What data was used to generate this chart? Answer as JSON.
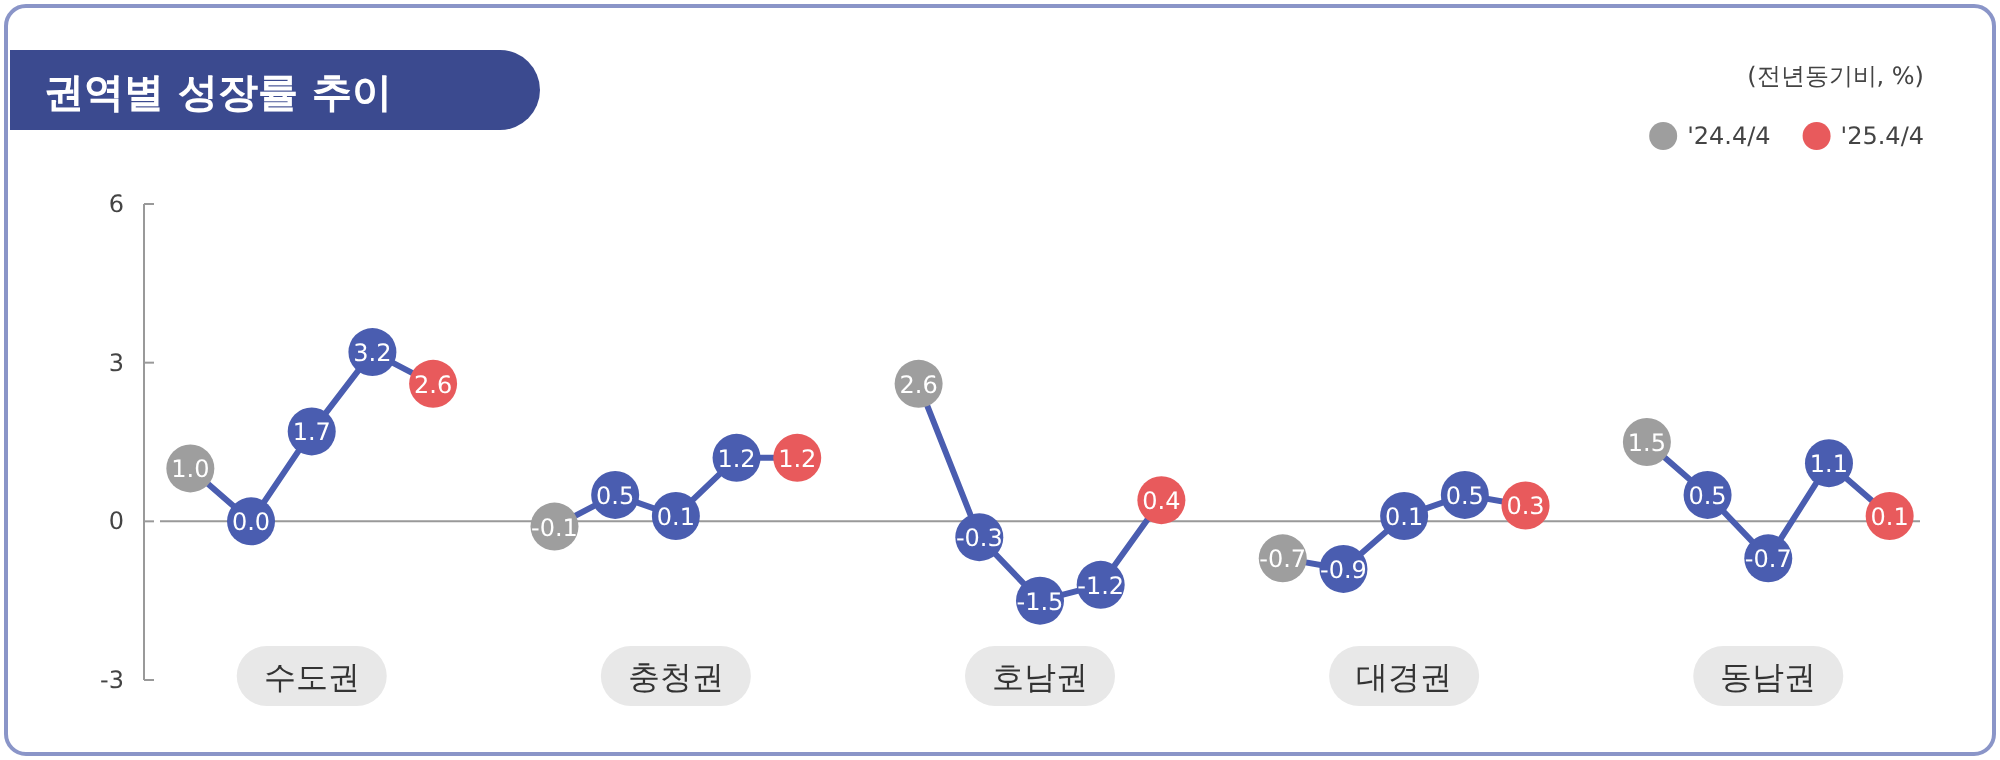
{
  "chart_data": {
    "type": "line",
    "title": "권역별 성장률 추이",
    "subtitle": "(전년동기비, %)",
    "annotations": [
      "수도권",
      "충청권",
      "호남권",
      "대경권",
      "동남권"
    ],
    "categories": [
      null,
      null,
      null,
      null,
      null,
      null,
      null,
      null,
      null,
      null,
      null,
      null,
      null,
      null,
      null,
      null,
      null,
      null,
      null,
      null,
      null,
      null,
      null,
      null,
      null,
      null,
      null,
      null,
      null
    ],
    "ylim": [
      -3,
      6
    ],
    "yticks": [
      -3,
      0,
      3,
      6
    ],
    "legend": "top right",
    "series": [
      {
        "color": "#4a5db0",
        "marker": "none",
        "values": [
          1.0,
          0.0,
          1.7,
          3.2,
          2.6,
          null,
          -0.1,
          0.5,
          0.1,
          1.2,
          1.2,
          null,
          2.6,
          -0.3,
          -1.5,
          -1.2,
          0.4,
          null,
          -0.7,
          -0.9,
          0.1,
          0.5,
          0.3,
          null,
          1.5,
          0.5,
          -0.7,
          1.1,
          0.1
        ]
      },
      {
        "type": "scatter",
        "marker": "circle",
        "color": "#4a5db0",
        "values": [
          null,
          0.0,
          1.7,
          3.2,
          null,
          null,
          null,
          0.5,
          0.1,
          1.2,
          null,
          null,
          null,
          -0.3,
          -1.5,
          -1.2,
          null,
          null,
          null,
          -0.9,
          0.1,
          0.5,
          null,
          null,
          null,
          0.5,
          -0.7,
          1.1,
          null
        ],
        "value_labels": [
          null,
          "0.0",
          "1.7",
          "3.2",
          null,
          null,
          null,
          "0.5",
          "0.1",
          "1.2",
          null,
          null,
          null,
          "-0.3",
          "-1.5",
          "-1.2",
          null,
          null,
          null,
          "-0.9",
          "0.1",
          "0.5",
          null,
          null,
          null,
          "0.5",
          "-0.7",
          "1.1",
          null
        ]
      },
      {
        "type": "scatter",
        "marker": "circle",
        "name": "'24.4/4",
        "color": "#9e9e9e",
        "values": [
          1.0,
          null,
          null,
          null,
          null,
          null,
          -0.1,
          null,
          null,
          null,
          null,
          null,
          2.6,
          null,
          null,
          null,
          null,
          null,
          -0.7,
          null,
          null,
          null,
          null,
          null,
          1.5,
          null,
          null,
          null,
          null
        ],
        "value_labels": [
          "1.0",
          null,
          null,
          null,
          null,
          null,
          "-0.1",
          null,
          null,
          null,
          null,
          null,
          "2.6",
          null,
          null,
          null,
          null,
          null,
          "-0.7",
          null,
          null,
          null,
          null,
          null,
          "1.5",
          null,
          null,
          null,
          null
        ]
      },
      {
        "type": "scatter",
        "marker": "circle",
        "name": "'25.4/4",
        "color": "#e85a5c",
        "values": [
          null,
          null,
          null,
          null,
          2.6,
          null,
          null,
          null,
          null,
          null,
          1.2,
          null,
          null,
          null,
          null,
          null,
          0.4,
          null,
          null,
          null,
          null,
          null,
          0.3,
          null,
          null,
          null,
          null,
          null,
          0.1
        ],
        "value_labels": [
          null,
          null,
          null,
          null,
          "2.6",
          null,
          null,
          null,
          null,
          null,
          "1.2",
          null,
          null,
          null,
          null,
          null,
          "0.4",
          null,
          null,
          null,
          null,
          null,
          "0.3",
          null,
          null,
          null,
          null,
          null,
          "0.1"
        ]
      }
    ]
  }
}
